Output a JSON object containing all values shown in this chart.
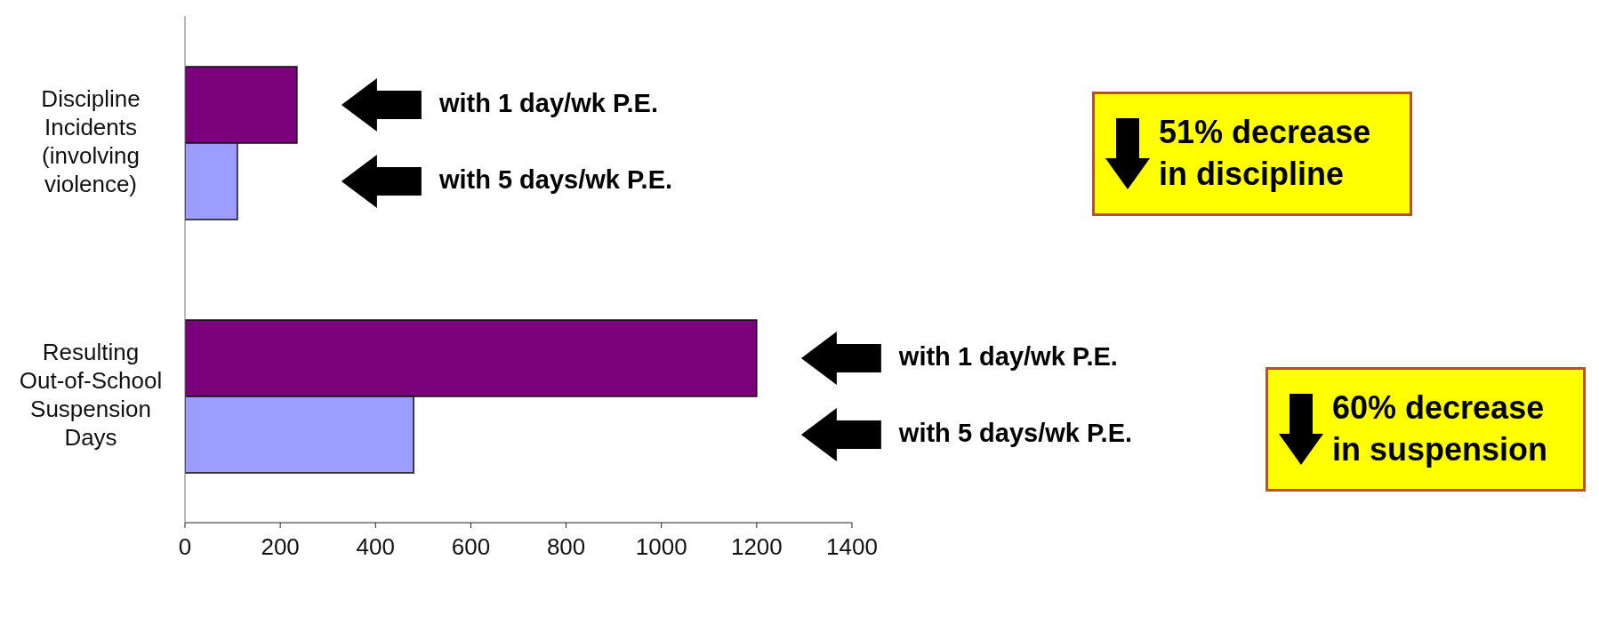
{
  "chart_data": {
    "type": "bar",
    "orientation": "horizontal",
    "categories": [
      "Discipline Incidents (involving violence)",
      "Resulting Out-of-School Suspension Days"
    ],
    "series": [
      {
        "name": "with 1 day/wk P.E.",
        "color": "#7b007b",
        "values": [
          235,
          1200
        ]
      },
      {
        "name": "with 5 days/wk P.E.",
        "color": "#9d9dff",
        "values": [
          110,
          480
        ]
      }
    ],
    "xlim": [
      0,
      1400
    ],
    "xticks": [
      0,
      200,
      400,
      600,
      800,
      1000,
      1200,
      1400
    ],
    "grid": false,
    "legend": false,
    "annotations": [
      "51% decrease in discipline",
      "60% decrease in suspension"
    ]
  }
}
